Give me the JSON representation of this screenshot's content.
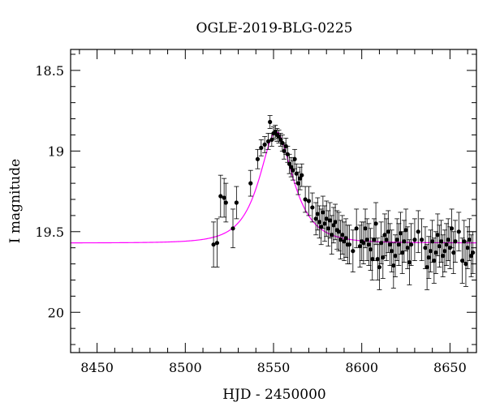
{
  "chart_data": {
    "type": "scatter",
    "title": "OGLE-2019-BLG-0225",
    "xlabel": "HJD - 2450000",
    "ylabel": "I magnitude",
    "xlim": [
      8435,
      8665
    ],
    "ylim": [
      20.25,
      18.37
    ],
    "y_inverted": true,
    "x_ticks": [
      8450,
      8500,
      8550,
      8600,
      8650
    ],
    "x_tick_labels": [
      "8450",
      "8500",
      "8550",
      "8600",
      "8650"
    ],
    "y_ticks": [
      18.5,
      19,
      19.5,
      20
    ],
    "y_tick_labels": [
      "18.5",
      "19",
      "19.5",
      "20"
    ],
    "grid": false,
    "legend": "none",
    "colors": {
      "model": "#ff00ff",
      "points": "#000000"
    },
    "model": {
      "name": "",
      "type": "microlensing-fit",
      "t0": 8551.5,
      "baseline_mag": 19.57,
      "peak_mag": 18.88
    },
    "series": [
      {
        "name": "",
        "x": [
          8516,
          8518,
          8520,
          8522,
          8523,
          8527,
          8529,
          8537,
          8541,
          8543,
          8545,
          8547,
          8548,
          8549,
          8550,
          8551,
          8552,
          8553,
          8554,
          8555,
          8556,
          8557,
          8558,
          8559,
          8560,
          8561,
          8562,
          8563,
          8564,
          8565,
          8566,
          8568,
          8570,
          8572,
          8574,
          8575,
          8576,
          8577,
          8578,
          8579,
          8580,
          8581,
          8582,
          8583,
          8584,
          8585,
          8586,
          8587,
          8588,
          8589,
          8590,
          8591,
          8592,
          8593,
          8595,
          8597,
          8599,
          8600,
          8601,
          8602,
          8603,
          8604,
          8605,
          8606,
          8607,
          8608,
          8609,
          8610,
          8611,
          8612,
          8613,
          8614,
          8615,
          8616,
          8617,
          8618,
          8619,
          8620,
          8621,
          8622,
          8623,
          8624,
          8625,
          8626,
          8627,
          8628,
          8630,
          8632,
          8634,
          8636,
          8637,
          8638,
          8639,
          8640,
          8641,
          8642,
          8643,
          8644,
          8645,
          8646,
          8647,
          8648,
          8649,
          8650,
          8651,
          8652,
          8653,
          8655,
          8657,
          8658,
          8659,
          8660,
          8661,
          8662,
          8663
        ],
        "y": [
          19.58,
          19.57,
          19.28,
          19.29,
          19.32,
          19.48,
          19.32,
          19.2,
          19.05,
          18.98,
          18.96,
          18.94,
          18.82,
          18.93,
          18.89,
          18.88,
          18.9,
          18.91,
          18.93,
          18.95,
          19.0,
          18.97,
          19.02,
          19.08,
          19.1,
          19.12,
          19.05,
          19.14,
          19.2,
          19.17,
          19.15,
          19.3,
          19.31,
          19.35,
          19.42,
          19.39,
          19.44,
          19.47,
          19.38,
          19.45,
          19.42,
          19.48,
          19.43,
          19.52,
          19.46,
          19.44,
          19.49,
          19.5,
          19.55,
          19.52,
          19.56,
          19.54,
          19.58,
          19.58,
          19.62,
          19.48,
          19.59,
          19.56,
          19.57,
          19.48,
          19.55,
          19.58,
          19.61,
          19.67,
          19.55,
          19.45,
          19.67,
          19.72,
          19.57,
          19.66,
          19.52,
          19.55,
          19.5,
          19.58,
          19.62,
          19.71,
          19.65,
          19.55,
          19.58,
          19.51,
          19.63,
          19.56,
          19.49,
          19.6,
          19.69,
          19.58,
          19.55,
          19.5,
          19.55,
          19.6,
          19.72,
          19.66,
          19.62,
          19.56,
          19.68,
          19.63,
          19.52,
          19.59,
          19.56,
          19.65,
          19.62,
          19.58,
          19.55,
          19.6,
          19.48,
          19.63,
          19.56,
          19.5,
          19.68,
          19.56,
          19.7,
          19.6,
          19.55,
          19.65,
          19.63
        ],
        "err": [
          0.14,
          0.15,
          0.13,
          0.12,
          0.12,
          0.12,
          0.1,
          0.08,
          0.06,
          0.05,
          0.05,
          0.05,
          0.04,
          0.04,
          0.04,
          0.04,
          0.04,
          0.04,
          0.04,
          0.05,
          0.05,
          0.05,
          0.05,
          0.06,
          0.06,
          0.06,
          0.06,
          0.06,
          0.07,
          0.07,
          0.07,
          0.08,
          0.09,
          0.09,
          0.1,
          0.1,
          0.1,
          0.11,
          0.1,
          0.11,
          0.11,
          0.11,
          0.11,
          0.12,
          0.11,
          0.11,
          0.12,
          0.12,
          0.12,
          0.12,
          0.12,
          0.12,
          0.12,
          0.12,
          0.13,
          0.12,
          0.13,
          0.12,
          0.13,
          0.12,
          0.13,
          0.13,
          0.13,
          0.13,
          0.13,
          0.13,
          0.13,
          0.14,
          0.13,
          0.13,
          0.13,
          0.13,
          0.13,
          0.13,
          0.13,
          0.14,
          0.13,
          0.13,
          0.13,
          0.13,
          0.13,
          0.13,
          0.13,
          0.13,
          0.14,
          0.13,
          0.13,
          0.13,
          0.13,
          0.13,
          0.14,
          0.13,
          0.13,
          0.13,
          0.14,
          0.13,
          0.13,
          0.13,
          0.13,
          0.13,
          0.13,
          0.13,
          0.13,
          0.13,
          0.12,
          0.13,
          0.13,
          0.12,
          0.14,
          0.13,
          0.14,
          0.13,
          0.13,
          0.13,
          0.13
        ]
      }
    ]
  }
}
